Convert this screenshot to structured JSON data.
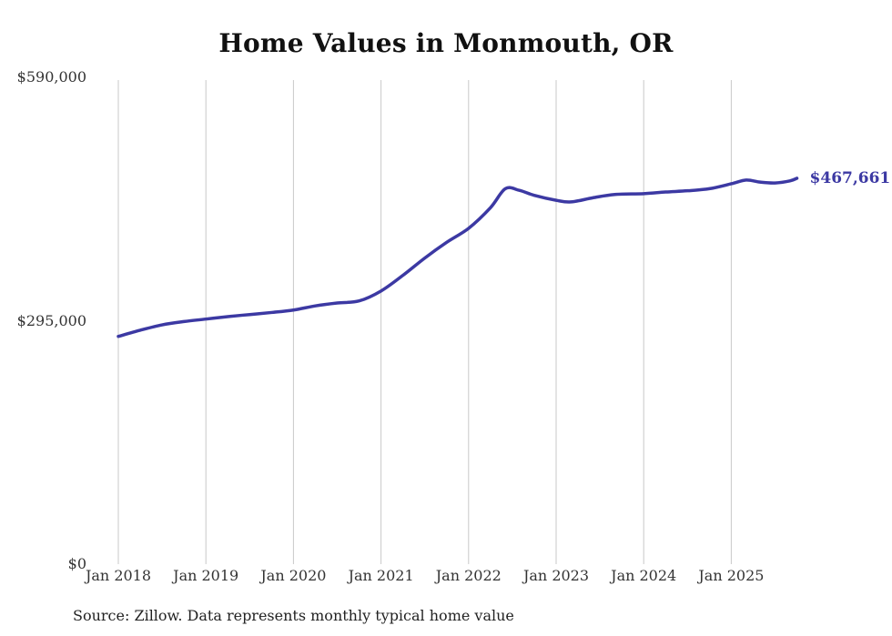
{
  "colors": {
    "line": "#3c39a3",
    "grid": "#c9c9c9",
    "text": "#111111"
  },
  "source_note": "Source: Zillow. Data represents monthly typical home value",
  "chart_data": {
    "type": "line",
    "title": "Home Values in Monmouth, OR",
    "xlabel": "",
    "ylabel": "",
    "xlim": [
      2018.0,
      2025.92
    ],
    "ylim": [
      0,
      590000
    ],
    "grid": "vertical-yearly",
    "legend": "none",
    "y_ticks": [
      {
        "value": 590000,
        "label": "$590,000"
      },
      {
        "value": 295000,
        "label": "$295,000"
      },
      {
        "value": 0,
        "label": "$0"
      }
    ],
    "x_ticks": [
      {
        "value": 2018,
        "label": "Jan 2018"
      },
      {
        "value": 2019,
        "label": "Jan 2019"
      },
      {
        "value": 2020,
        "label": "Jan 2020"
      },
      {
        "value": 2021,
        "label": "Jan 2021"
      },
      {
        "value": 2022,
        "label": "Jan 2022"
      },
      {
        "value": 2023,
        "label": "Jan 2023"
      },
      {
        "value": 2024,
        "label": "Jan 2024"
      },
      {
        "value": 2025,
        "label": "Jan 2025"
      }
    ],
    "series": [
      {
        "name": "Typical home value",
        "end_label": "$467,661",
        "x": [
          2018.0,
          2018.25,
          2018.5,
          2018.75,
          2019.0,
          2019.25,
          2019.5,
          2019.75,
          2020.0,
          2020.25,
          2020.5,
          2020.75,
          2021.0,
          2021.25,
          2021.5,
          2021.75,
          2022.0,
          2022.25,
          2022.42,
          2022.58,
          2022.75,
          2023.0,
          2023.17,
          2023.42,
          2023.67,
          2024.0,
          2024.25,
          2024.5,
          2024.75,
          2025.0,
          2025.17,
          2025.33,
          2025.5,
          2025.67,
          2025.75
        ],
        "values": [
          276000,
          283500,
          290000,
          294000,
          297000,
          300000,
          302500,
          305000,
          308000,
          313000,
          316500,
          319000,
          331000,
          350000,
          371000,
          390000,
          407000,
          432000,
          455000,
          453000,
          447000,
          441000,
          439000,
          444000,
          448000,
          449000,
          451000,
          452500,
          455000,
          461000,
          465500,
          463000,
          462000,
          464500,
          467661
        ]
      }
    ]
  }
}
